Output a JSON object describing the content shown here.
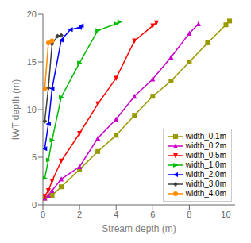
{
  "chart_data": {
    "type": "line",
    "xlabel": "Stream depth (m)",
    "ylabel": "IWT depth (m)",
    "xlim": [
      0,
      10.5
    ],
    "ylim": [
      0,
      20
    ],
    "xticks": [
      0,
      2,
      4,
      6,
      8,
      10
    ],
    "yticks": [
      0,
      5,
      10,
      15,
      20
    ],
    "grid": false,
    "legend": "lower right",
    "series": [
      {
        "name": "width_0.1m",
        "color": "#999900",
        "marker": "square",
        "x": [
          0.1,
          0.5,
          1.0,
          2.0,
          3.0,
          4.0,
          5.0,
          6.0,
          7.0,
          8.0,
          9.0,
          10.0,
          10.2
        ],
        "values": [
          0.7,
          1.0,
          1.9,
          3.7,
          5.6,
          7.3,
          9.4,
          11.4,
          13.0,
          15.0,
          17.0,
          18.9,
          19.3
        ]
      },
      {
        "name": "width_0.2m",
        "color": "#cc00cc",
        "marker": "triangle_up",
        "x": [
          0.1,
          0.3,
          0.5,
          1.0,
          2.0,
          3.0,
          4.0,
          5.0,
          6.0,
          7.0,
          8.0,
          8.5
        ],
        "values": [
          0.7,
          1.0,
          1.5,
          2.7,
          4.0,
          7.0,
          9.0,
          11.4,
          13.2,
          15.5,
          18.0,
          19.0
        ]
      },
      {
        "name": "width_0.5m",
        "color": "#ff0000",
        "marker": "triangle_down",
        "x": [
          0.1,
          0.3,
          0.5,
          1.0,
          2.0,
          3.0,
          4.0,
          5.0,
          6.0,
          6.2
        ],
        "values": [
          0.9,
          1.5,
          2.5,
          4.6,
          7.5,
          10.6,
          13.3,
          17.2,
          18.8,
          19.1
        ]
      },
      {
        "name": "width_1.0m",
        "color": "#00bb00",
        "marker": "triangle_right",
        "x": [
          0.1,
          0.3,
          0.5,
          1.0,
          2.0,
          3.0,
          4.0,
          4.2
        ],
        "values": [
          2.8,
          4.7,
          6.8,
          11.3,
          14.9,
          18.3,
          19.0,
          19.2
        ]
      },
      {
        "name": "width_2.0m",
        "color": "#0000ff",
        "marker": "triangle_left",
        "x": [
          0.1,
          0.3,
          0.5,
          1.0,
          1.5,
          2.0,
          2.1
        ],
        "values": [
          5.9,
          8.5,
          12.2,
          17.3,
          18.4,
          18.6,
          18.8
        ]
      },
      {
        "name": "width_3.0m",
        "color": "#404040",
        "marker": "diamond",
        "x": [
          0.1,
          0.3,
          0.5,
          0.8,
          1.0
        ],
        "values": [
          8.8,
          12.3,
          16.9,
          17.7,
          17.8
        ]
      },
      {
        "name": "width_4.0m",
        "color": "#ff8c00",
        "marker": "circle",
        "x": [
          0.1,
          0.3,
          0.5
        ],
        "values": [
          12.2,
          17.0,
          17.2
        ]
      }
    ]
  }
}
